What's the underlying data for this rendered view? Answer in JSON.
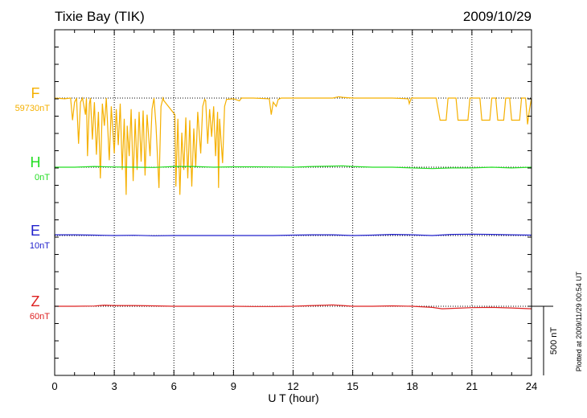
{
  "station_title": "Tixie Bay (TIK)",
  "date": "2009/10/29",
  "plotted_note": "Plotted at 2009/11/29 00:54 UT",
  "scale_label": "500 nT",
  "chart_data": {
    "type": "line",
    "xlabel": "U T (hour)",
    "xlim": [
      0,
      24
    ],
    "xticks": [
      "0",
      "3",
      "6",
      "9",
      "12",
      "15",
      "18",
      "21",
      "24"
    ],
    "grid": "vertical dotted every 3 h",
    "scale_bar_nT": 500,
    "series": [
      {
        "name": "F",
        "baseline_label": "59730nT",
        "color": "#f5b000",
        "points": [
          [
            0,
            0
          ],
          [
            0.5,
            -5
          ],
          [
            0.8,
            0
          ],
          [
            0.9,
            -160
          ],
          [
            1.0,
            -30
          ],
          [
            1.1,
            0
          ],
          [
            1.2,
            -330
          ],
          [
            1.3,
            -30
          ],
          [
            1.4,
            0
          ],
          [
            1.55,
            -120
          ],
          [
            1.6,
            0
          ],
          [
            1.65,
            -420
          ],
          [
            1.75,
            -40
          ],
          [
            1.8,
            0
          ],
          [
            1.9,
            -300
          ],
          [
            2.0,
            -30
          ],
          [
            2.1,
            -410
          ],
          [
            2.2,
            -100
          ],
          [
            2.3,
            -580
          ],
          [
            2.4,
            -40
          ],
          [
            2.5,
            -200
          ],
          [
            2.6,
            0
          ],
          [
            2.75,
            -450
          ],
          [
            2.85,
            -60
          ],
          [
            3.0,
            -400
          ],
          [
            3.1,
            -80
          ],
          [
            3.2,
            -340
          ],
          [
            3.3,
            -40
          ],
          [
            3.4,
            -520
          ],
          [
            3.5,
            -150
          ],
          [
            3.6,
            -700
          ],
          [
            3.65,
            -200
          ],
          [
            3.75,
            -420
          ],
          [
            3.85,
            -80
          ],
          [
            3.95,
            -600
          ],
          [
            4.05,
            -150
          ],
          [
            4.15,
            -520
          ],
          [
            4.25,
            -100
          ],
          [
            4.35,
            -460
          ],
          [
            4.45,
            -90
          ],
          [
            4.55,
            -560
          ],
          [
            4.65,
            -120
          ],
          [
            4.8,
            -420
          ],
          [
            4.9,
            -80
          ],
          [
            5.0,
            0
          ],
          [
            5.1,
            -200
          ],
          [
            5.25,
            -650
          ],
          [
            5.35,
            -60
          ],
          [
            5.45,
            0
          ],
          [
            5.5,
            -20
          ],
          [
            6.05,
            -120
          ],
          [
            6.1,
            -640
          ],
          [
            6.2,
            -150
          ],
          [
            6.3,
            -700
          ],
          [
            6.4,
            -250
          ],
          [
            6.5,
            -520
          ],
          [
            6.6,
            -140
          ],
          [
            6.7,
            -580
          ],
          [
            6.8,
            -160
          ],
          [
            6.9,
            -640
          ],
          [
            7.0,
            -220
          ],
          [
            7.1,
            -500
          ],
          [
            7.2,
            -100
          ],
          [
            7.35,
            -400
          ],
          [
            7.45,
            -60
          ],
          [
            7.55,
            -10
          ],
          [
            7.6,
            -20
          ],
          [
            7.7,
            -330
          ],
          [
            7.8,
            -80
          ],
          [
            7.9,
            -280
          ],
          [
            8.0,
            -60
          ],
          [
            8.1,
            -420
          ],
          [
            8.2,
            -100
          ],
          [
            8.25,
            -650
          ],
          [
            8.3,
            -150
          ],
          [
            8.45,
            -470
          ],
          [
            8.55,
            -60
          ],
          [
            8.65,
            -10
          ],
          [
            9.0,
            -5
          ],
          [
            9.3,
            -20
          ],
          [
            9.4,
            0
          ],
          [
            10.0,
            0
          ],
          [
            10.8,
            -5
          ],
          [
            10.9,
            -120
          ],
          [
            11.0,
            -30
          ],
          [
            11.15,
            -60
          ],
          [
            11.25,
            -10
          ],
          [
            11.4,
            0
          ],
          [
            12.0,
            0
          ],
          [
            13.0,
            0
          ],
          [
            14.0,
            0
          ],
          [
            14.3,
            10
          ],
          [
            14.5,
            5
          ],
          [
            15.0,
            0
          ],
          [
            16.0,
            0
          ],
          [
            17.0,
            0
          ],
          [
            17.8,
            -5
          ],
          [
            17.85,
            -40
          ],
          [
            17.95,
            0
          ],
          [
            18.5,
            0
          ],
          [
            19.2,
            0
          ],
          [
            19.4,
            -160
          ],
          [
            19.7,
            -160
          ],
          [
            19.8,
            0
          ],
          [
            20.2,
            0
          ],
          [
            20.3,
            -160
          ],
          [
            20.8,
            -160
          ],
          [
            20.9,
            0
          ],
          [
            21.4,
            0
          ],
          [
            21.5,
            -160
          ],
          [
            21.9,
            -160
          ],
          [
            22.0,
            0
          ],
          [
            22.2,
            0
          ],
          [
            22.3,
            -160
          ],
          [
            22.6,
            -160
          ],
          [
            22.7,
            0
          ],
          [
            22.9,
            0
          ],
          [
            23.0,
            -160
          ],
          [
            23.4,
            -160
          ],
          [
            23.5,
            0
          ],
          [
            23.7,
            0
          ],
          [
            23.8,
            -190
          ],
          [
            23.9,
            -80
          ],
          [
            24.0,
            0
          ]
        ]
      },
      {
        "name": "H",
        "baseline_label": "0nT",
        "color": "#22dd22",
        "points": [
          [
            0,
            0
          ],
          [
            1,
            0
          ],
          [
            2,
            5
          ],
          [
            3,
            2
          ],
          [
            4,
            0
          ],
          [
            5,
            -2
          ],
          [
            6,
            5
          ],
          [
            7,
            5
          ],
          [
            8,
            0
          ],
          [
            9,
            3
          ],
          [
            10,
            3
          ],
          [
            11,
            2
          ],
          [
            12,
            0
          ],
          [
            13,
            5
          ],
          [
            14,
            8
          ],
          [
            14.5,
            10
          ],
          [
            15,
            5
          ],
          [
            16,
            0
          ],
          [
            17,
            0
          ],
          [
            18,
            -5
          ],
          [
            19,
            -10
          ],
          [
            20,
            -5
          ],
          [
            21,
            -5
          ],
          [
            22,
            0
          ],
          [
            23,
            -5
          ],
          [
            24,
            0
          ]
        ]
      },
      {
        "name": "E",
        "baseline_label": "10nT",
        "color": "#2020cc",
        "points": [
          [
            0,
            5
          ],
          [
            1,
            5
          ],
          [
            2,
            3
          ],
          [
            3,
            0
          ],
          [
            4,
            2
          ],
          [
            5,
            -2
          ],
          [
            6,
            0
          ],
          [
            7,
            0
          ],
          [
            8,
            0
          ],
          [
            9,
            0
          ],
          [
            10,
            0
          ],
          [
            11,
            0
          ],
          [
            12,
            3
          ],
          [
            13,
            5
          ],
          [
            14,
            5
          ],
          [
            15,
            0
          ],
          [
            16,
            3
          ],
          [
            17,
            8
          ],
          [
            18,
            5
          ],
          [
            19,
            0
          ],
          [
            20,
            8
          ],
          [
            21,
            10
          ],
          [
            22,
            8
          ],
          [
            23,
            5
          ],
          [
            24,
            3
          ]
        ]
      },
      {
        "name": "Z",
        "baseline_label": "60nT",
        "color": "#dd2020",
        "points": [
          [
            0,
            0
          ],
          [
            1,
            0
          ],
          [
            2,
            2
          ],
          [
            2.5,
            8
          ],
          [
            3,
            5
          ],
          [
            4,
            5
          ],
          [
            5,
            3
          ],
          [
            6,
            0
          ],
          [
            7,
            0
          ],
          [
            8,
            0
          ],
          [
            9,
            0
          ],
          [
            10,
            -2
          ],
          [
            11,
            -2
          ],
          [
            12,
            0
          ],
          [
            13,
            5
          ],
          [
            14,
            10
          ],
          [
            14.5,
            5
          ],
          [
            15,
            0
          ],
          [
            16,
            0
          ],
          [
            17,
            3
          ],
          [
            18,
            0
          ],
          [
            19,
            -8
          ],
          [
            19.5,
            -18
          ],
          [
            20,
            -15
          ],
          [
            21,
            -10
          ],
          [
            22,
            -8
          ],
          [
            23,
            -12
          ],
          [
            24,
            -18
          ]
        ]
      }
    ]
  }
}
